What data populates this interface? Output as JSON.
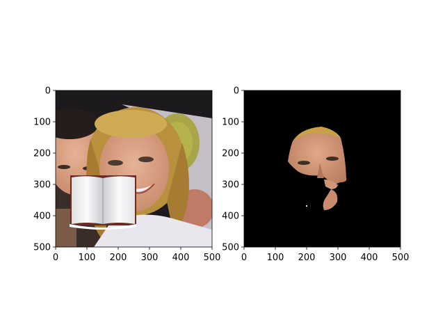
{
  "chart_data": [
    {
      "type": "image",
      "panel": "left",
      "content": "photo: two smiling people with a white open-book object pasted over the lower-left face",
      "xlim": [
        0,
        500
      ],
      "ylim": [
        500,
        0
      ],
      "xticks": [
        0,
        100,
        200,
        300,
        400,
        500
      ],
      "yticks": [
        0,
        100,
        200,
        300,
        400,
        500
      ],
      "xtick_labels": [
        "0",
        "100",
        "200",
        "300",
        "400",
        "500"
      ],
      "ytick_labels": [
        "0",
        "100",
        "200",
        "300",
        "400",
        "500"
      ]
    },
    {
      "type": "image",
      "panel": "right",
      "content": "segmentation mask: only the blonde woman's face region visible, rest black",
      "xlim": [
        0,
        500
      ],
      "ylim": [
        500,
        0
      ],
      "xticks": [
        0,
        100,
        200,
        300,
        400,
        500
      ],
      "yticks": [
        0,
        100,
        200,
        300,
        400,
        500
      ],
      "xtick_labels": [
        "0",
        "100",
        "200",
        "300",
        "400",
        "500"
      ],
      "ytick_labels": [
        "0",
        "100",
        "200",
        "300",
        "400",
        "500"
      ]
    }
  ],
  "colors": {
    "mask_background": "#000000",
    "skin": "#d9a183",
    "hair": "#c9a24a",
    "shirt": "#e9e6ee",
    "book_page": "#f3f3f4",
    "book_cover": "#6b2a22"
  }
}
